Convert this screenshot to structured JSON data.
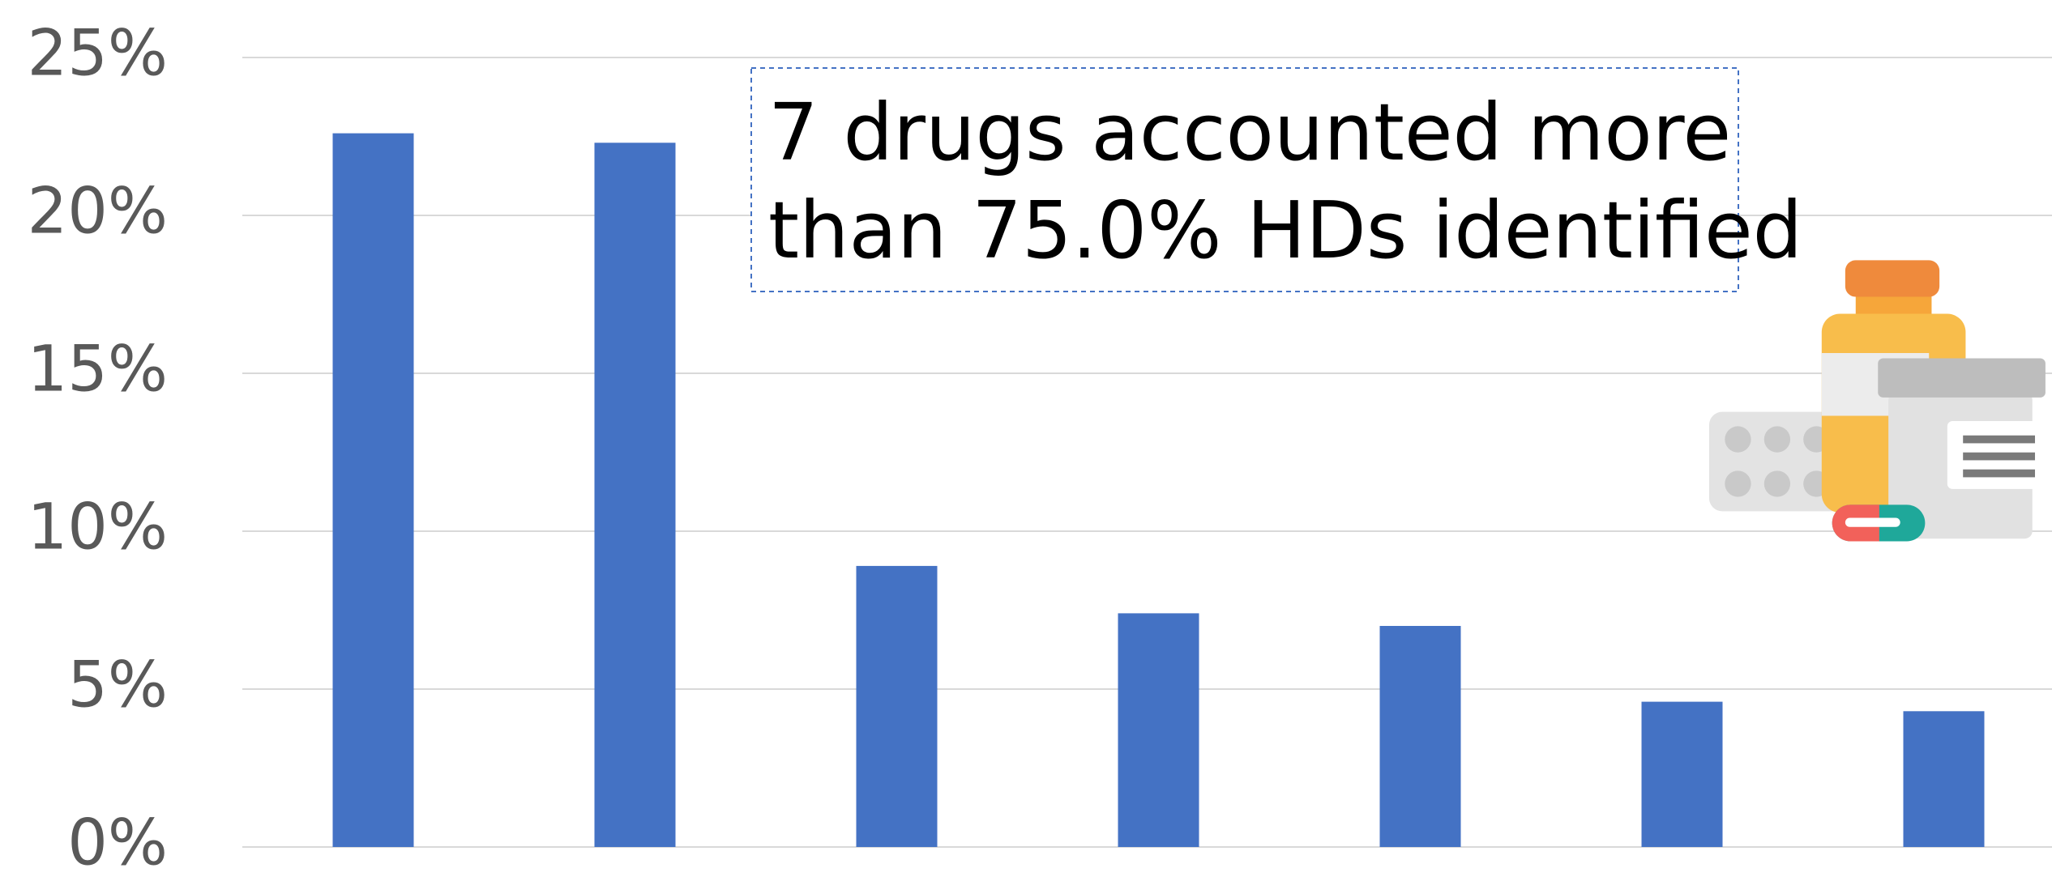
{
  "chart_data": {
    "type": "bar",
    "categories": [
      null,
      null,
      null,
      null,
      null,
      null,
      null
    ],
    "values": [
      22.6,
      22.3,
      8.9,
      7.4,
      7.0,
      4.6,
      4.3
    ],
    "color": "#4472c4",
    "ylim": [
      0,
      25
    ],
    "yticks": [
      {
        "value": 0,
        "label": "0%"
      },
      {
        "value": 5,
        "label": "5%"
      },
      {
        "value": 10,
        "label": "10%"
      },
      {
        "value": 15,
        "label": "15%"
      },
      {
        "value": 20,
        "label": "20%"
      },
      {
        "value": 25,
        "label": "25%"
      }
    ],
    "grid": true,
    "annotation": [
      "7 drugs accounted more",
      "than 75.0% HDs identified"
    ]
  }
}
